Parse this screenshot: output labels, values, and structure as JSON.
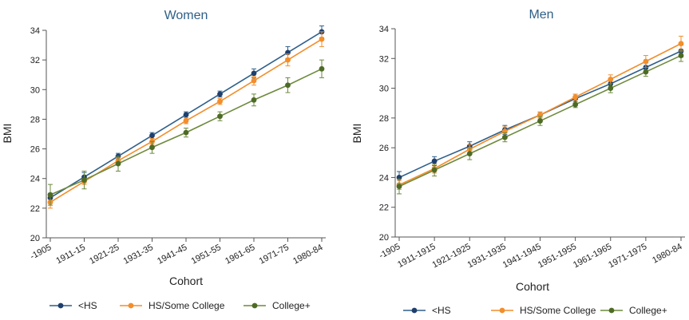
{
  "chart_data": [
    {
      "type": "line",
      "title": "Women",
      "xlabel": "Cohort",
      "ylabel": "BMI",
      "categories": [
        "-1905",
        "1911-15",
        "1921-25",
        "1931-35",
        "1941-45",
        "1951-55",
        "1961-65",
        "1971-75",
        "1980-84"
      ],
      "ylim": [
        20,
        34
      ],
      "yticks": [
        20,
        22,
        24,
        26,
        28,
        30,
        32,
        34
      ],
      "grid": false,
      "legend_position": "bottom",
      "series": [
        {
          "name": "<HS",
          "color": "#2e5f8a",
          "point_color": "#1f3f6d",
          "values": [
            22.7,
            24.1,
            25.5,
            26.9,
            28.3,
            29.7,
            31.1,
            32.5,
            33.9
          ],
          "lower": [
            22.4,
            23.8,
            25.3,
            26.7,
            28.1,
            29.5,
            30.8,
            32.1,
            33.5
          ],
          "upper": [
            23.0,
            24.4,
            25.7,
            27.1,
            28.5,
            29.9,
            31.4,
            32.9,
            34.3
          ]
        },
        {
          "name": "HS/Some College",
          "color": "#f28e2b",
          "point_color": "#f28e2b",
          "values": [
            22.4,
            23.8,
            25.2,
            26.5,
            27.9,
            29.2,
            30.6,
            32.0,
            33.4
          ],
          "lower": [
            22.0,
            23.6,
            25.0,
            26.3,
            27.7,
            29.0,
            30.3,
            31.6,
            32.9
          ],
          "upper": [
            22.8,
            24.0,
            25.4,
            26.7,
            28.1,
            29.4,
            30.9,
            32.4,
            33.9
          ]
        },
        {
          "name": "College+",
          "color": "#6d8a3c",
          "point_color": "#4e6b25",
          "values": [
            22.9,
            23.9,
            25.0,
            26.1,
            27.1,
            28.2,
            29.3,
            30.3,
            31.4
          ],
          "lower": [
            22.2,
            23.3,
            24.5,
            25.7,
            26.8,
            27.9,
            28.9,
            29.8,
            30.8
          ],
          "upper": [
            23.6,
            24.5,
            25.5,
            26.5,
            27.4,
            28.5,
            29.7,
            30.8,
            32.0
          ]
        }
      ]
    },
    {
      "type": "line",
      "title": "Men",
      "xlabel": "Cohort",
      "ylabel": "BMI",
      "categories": [
        "-1905",
        "1911-1915",
        "1921-1925",
        "1931-1935",
        "1941-1945",
        "1951-1955",
        "1961-1965",
        "1971-1975",
        "1980-84"
      ],
      "ylim": [
        20,
        34
      ],
      "yticks": [
        20,
        22,
        24,
        26,
        28,
        30,
        32,
        34
      ],
      "grid": false,
      "legend_position": "bottom",
      "series": [
        {
          "name": "<HS",
          "color": "#2e5f8a",
          "point_color": "#1f3f6d",
          "values": [
            24.0,
            25.1,
            26.1,
            27.2,
            28.2,
            29.3,
            30.3,
            31.4,
            32.5
          ],
          "lower": [
            23.6,
            24.8,
            25.8,
            26.9,
            28.0,
            29.0,
            30.0,
            31.1,
            32.1
          ],
          "upper": [
            24.4,
            25.4,
            26.4,
            27.5,
            28.4,
            29.6,
            30.6,
            31.7,
            32.9
          ]
        },
        {
          "name": "HS/Some College",
          "color": "#f28e2b",
          "point_color": "#f28e2b",
          "values": [
            23.5,
            24.6,
            25.9,
            27.1,
            28.2,
            29.4,
            30.6,
            31.8,
            33.0
          ],
          "lower": [
            23.2,
            24.3,
            25.6,
            26.8,
            28.0,
            29.2,
            30.3,
            31.4,
            32.5
          ],
          "upper": [
            23.8,
            24.9,
            26.2,
            27.4,
            28.4,
            29.6,
            30.9,
            32.2,
            33.5
          ]
        },
        {
          "name": "College+",
          "color": "#6d8a3c",
          "point_color": "#4e6b25",
          "values": [
            23.4,
            24.5,
            25.6,
            26.7,
            27.8,
            28.9,
            30.0,
            31.1,
            32.2
          ],
          "lower": [
            22.9,
            24.1,
            25.2,
            26.4,
            27.5,
            28.7,
            29.7,
            30.8,
            31.8
          ],
          "upper": [
            23.9,
            24.9,
            26.0,
            27.0,
            28.1,
            29.1,
            30.3,
            31.4,
            32.6
          ]
        }
      ]
    }
  ]
}
